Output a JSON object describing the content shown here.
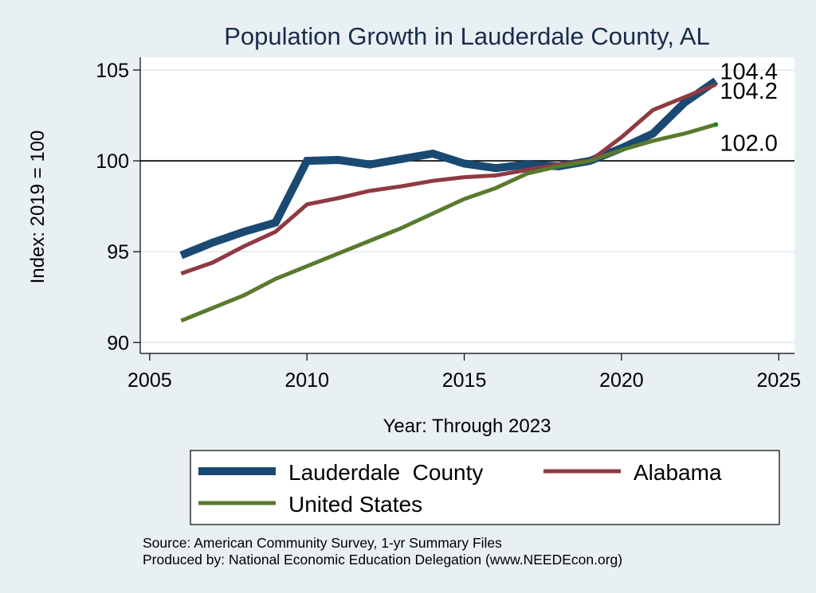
{
  "chart_data": {
    "type": "line",
    "title": "Population Growth in Lauderdale County, AL",
    "xlabel": "Year: Through 2023",
    "ylabel": "Index: 2019 = 100",
    "xlim": [
      2004.7,
      2025.5
    ],
    "ylim": [
      89.4,
      105.7
    ],
    "xticks": [
      2005,
      2010,
      2015,
      2020,
      2025
    ],
    "yticks": [
      90,
      95,
      100,
      105
    ],
    "grid": true,
    "reference_line": 100,
    "legend_placement": "bottom",
    "x": [
      2006,
      2007,
      2008,
      2009,
      2010,
      2011,
      2012,
      2013,
      2014,
      2015,
      2016,
      2017,
      2018,
      2019,
      2020,
      2021,
      2022,
      2023
    ],
    "series": [
      {
        "name": "Lauderdale  County",
        "color": "#1a4a72",
        "values": [
          94.8,
          95.5,
          96.1,
          96.6,
          100.0,
          100.05,
          99.8,
          100.1,
          100.4,
          99.85,
          99.6,
          99.8,
          99.7,
          100.0,
          100.7,
          101.5,
          103.2,
          104.4
        ],
        "end_label": "104.4"
      },
      {
        "name": "Alabama",
        "color": "#8f3a42",
        "values": [
          93.8,
          94.4,
          95.3,
          96.1,
          97.6,
          97.95,
          98.35,
          98.6,
          98.9,
          99.1,
          99.2,
          99.5,
          99.8,
          100.0,
          101.3,
          102.8,
          103.5,
          104.2
        ],
        "end_label": "104.2"
      },
      {
        "name": "United States",
        "color": "#5a7a2e",
        "values": [
          91.2,
          91.9,
          92.6,
          93.5,
          94.2,
          94.9,
          95.6,
          96.3,
          97.1,
          97.9,
          98.5,
          99.3,
          99.7,
          100.0,
          100.6,
          101.1,
          101.5,
          102.0
        ],
        "end_label": "102.0"
      }
    ],
    "notes": [
      "Source: American Community Survey, 1-yr Summary Files",
      "Produced by: National Economic Education Delegation (www.NEEDEcon.org)"
    ]
  }
}
